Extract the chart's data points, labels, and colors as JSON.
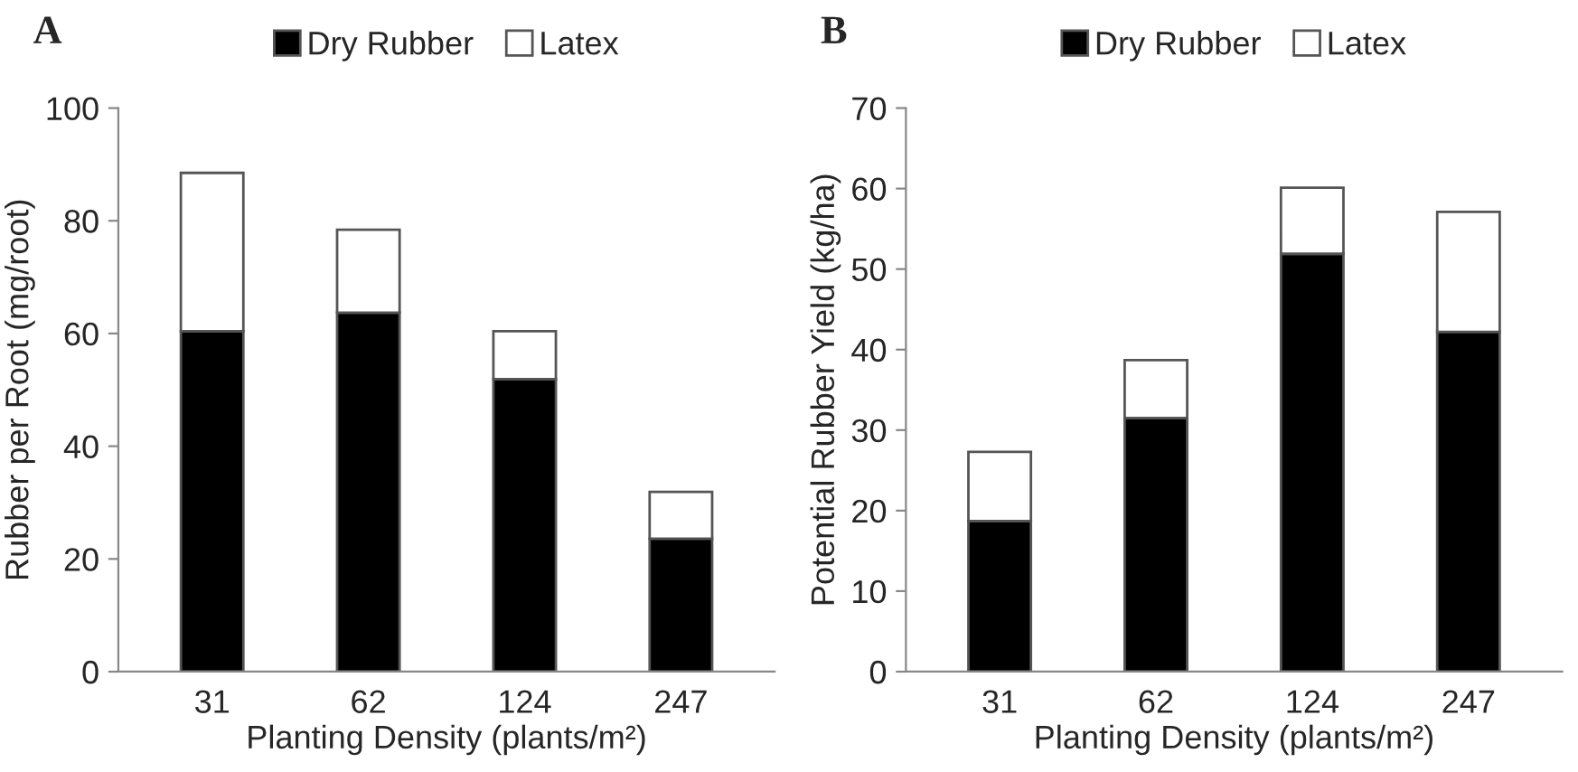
{
  "chart_data": [
    {
      "type": "bar",
      "title": "A",
      "categories": [
        "31",
        "62",
        "124",
        "247"
      ],
      "stacked": true,
      "xlabel": "Planting Density (plants/m²)",
      "ylabel": "Rubber per Root (mg/root)",
      "ylim": [
        0,
        100
      ],
      "yticks": [
        0,
        20,
        40,
        60,
        80,
        100
      ],
      "legend": "top",
      "grid": false,
      "series": [
        {
          "name": "Dry Rubber",
          "color": "#000000",
          "values": [
            60.4,
            63.7,
            51.9,
            23.6
          ]
        },
        {
          "name": "Latex",
          "color": "#ffffff",
          "values": [
            28.1,
            14.7,
            8.5,
            8.3
          ]
        }
      ]
    },
    {
      "type": "bar",
      "title": "B",
      "categories": [
        "31",
        "62",
        "124",
        "247"
      ],
      "stacked": true,
      "xlabel": "Planting Density (plants/m²)",
      "ylabel": "Potential Rubber Yield (kg/ha)",
      "ylim": [
        0,
        70
      ],
      "yticks": [
        0,
        10,
        20,
        30,
        40,
        50,
        60,
        70
      ],
      "legend": "top",
      "grid": false,
      "series": [
        {
          "name": "Dry Rubber",
          "color": "#000000",
          "values": [
            18.7,
            31.5,
            51.9,
            42.2
          ]
        },
        {
          "name": "Latex",
          "color": "#ffffff",
          "values": [
            8.6,
            7.2,
            8.2,
            14.9
          ]
        }
      ]
    }
  ]
}
